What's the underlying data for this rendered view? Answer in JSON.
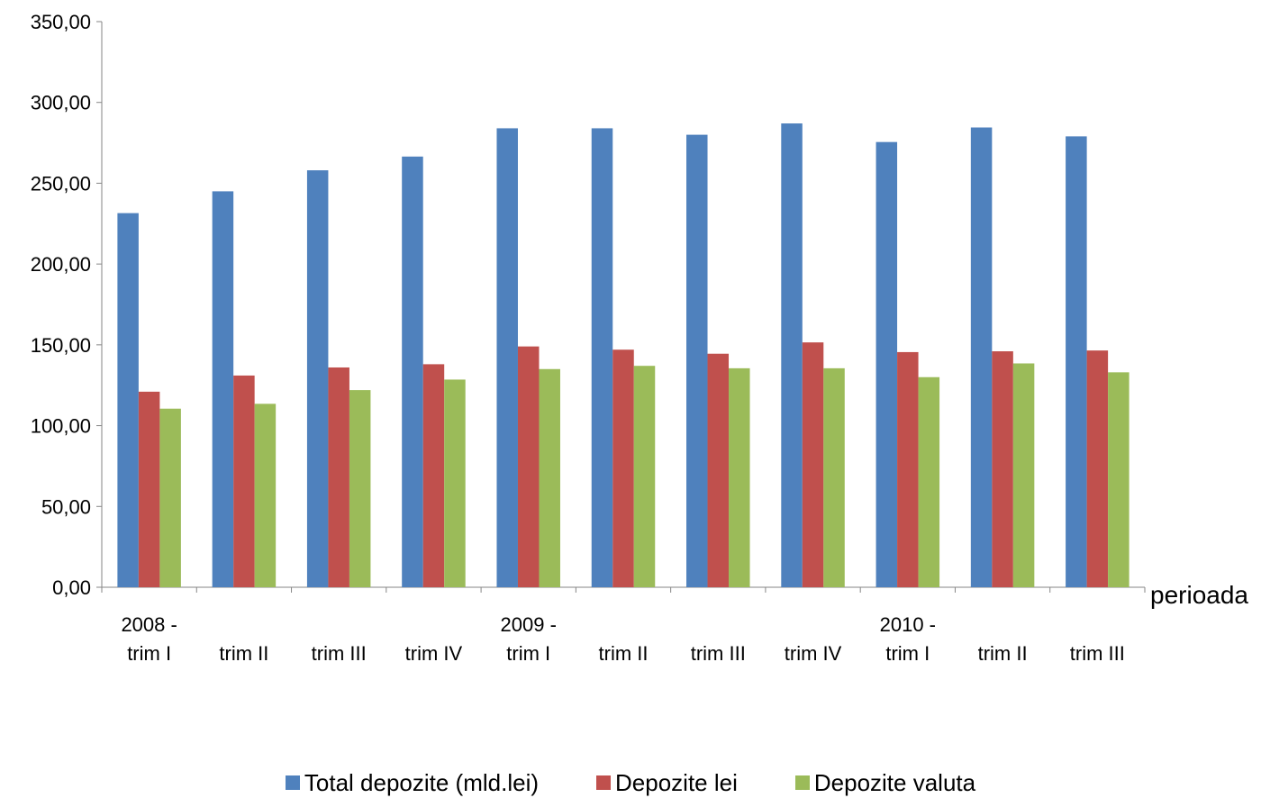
{
  "chart_data": {
    "type": "bar",
    "categories": [
      [
        "2008 -",
        "trim I"
      ],
      [
        "trim II"
      ],
      [
        "trim III"
      ],
      [
        "trim IV"
      ],
      [
        "2009 -",
        "trim I"
      ],
      [
        "trim II"
      ],
      [
        "trim III"
      ],
      [
        "trim IV"
      ],
      [
        "2010 -",
        "trim I"
      ],
      [
        "trim II"
      ],
      [
        "trim III"
      ]
    ],
    "series": [
      {
        "name": "Total depozite (mld.lei)",
        "color": "#4F81BD",
        "values": [
          231.5,
          245.0,
          258.0,
          266.5,
          284.0,
          284.0,
          280.0,
          287.0,
          275.5,
          284.5,
          279.0
        ]
      },
      {
        "name": "Depozite lei",
        "color": "#C0504D",
        "values": [
          121.0,
          131.0,
          136.0,
          138.0,
          149.0,
          147.0,
          144.5,
          151.5,
          145.5,
          146.0,
          146.5
        ]
      },
      {
        "name": "Depozite valuta",
        "color": "#9BBB59",
        "values": [
          110.5,
          113.5,
          122.0,
          128.5,
          135.0,
          137.0,
          135.5,
          135.5,
          130.0,
          138.5,
          133.0
        ]
      }
    ],
    "xlabel": "perioada",
    "ylabel": "",
    "ylim": [
      0,
      350
    ],
    "yticks": [
      "0,00",
      "50,00",
      "100,00",
      "150,00",
      "200,00",
      "250,00",
      "300,00",
      "350,00"
    ],
    "grid": false,
    "legend_position": "bottom"
  }
}
